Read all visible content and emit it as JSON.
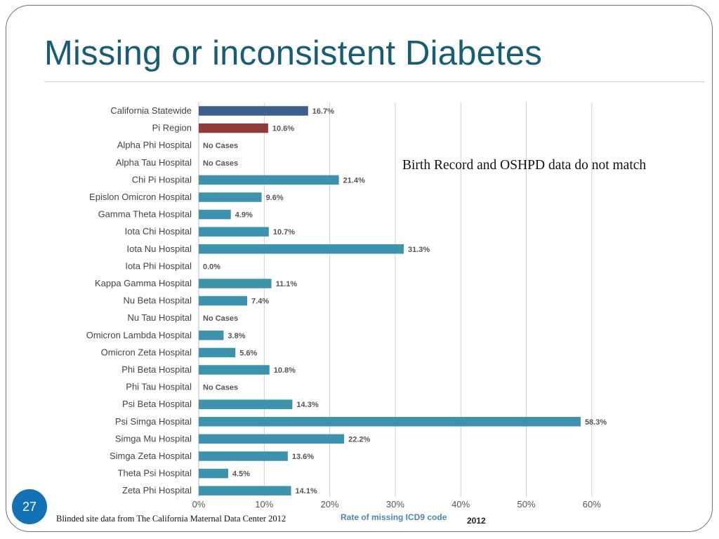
{
  "slide": {
    "title": "Missing or inconsistent Diabetes",
    "number": "27",
    "source": "Blinded site data from The California Maternal Data Center 2012",
    "callout": "Birth Record and OSHPD data do not match",
    "year": "2012"
  },
  "colors": {
    "statewide": "#3c5f8f",
    "region": "#913b3b",
    "hospital": "#3b93ad",
    "grid": "#cfcfcf",
    "title": "#155e73"
  },
  "chart_data": {
    "type": "bar",
    "orientation": "horizontal",
    "xlabel": "Rate of missing ICD9 code",
    "xlim": [
      0,
      60
    ],
    "xticks": [
      "0%",
      "10%",
      "20%",
      "30%",
      "40%",
      "50%",
      "60%"
    ],
    "grid": true,
    "categories": [
      "California Statewide",
      "Pi Region",
      "Alpha Phi Hospital",
      "Alpha Tau Hospital",
      "Chi Pi Hospital",
      "Epislon Omicron Hospital",
      "Gamma Theta Hospital",
      "Iota Chi Hospital",
      "Iota Nu Hospital",
      "Iota Phi Hospital",
      "Kappa Gamma Hospital",
      "Nu Beta Hospital",
      "Nu Tau Hospital",
      "Omicron Lambda Hospital",
      "Omicron Zeta Hospital",
      "Phi Beta Hospital",
      "Phi Tau Hospital",
      "Psi Beta Hospital",
      "Psi Simga Hospital",
      "Simga Mu Hospital",
      "Simga Zeta Hospital",
      "Theta Psi Hospital",
      "Zeta Phi Hospital"
    ],
    "values": [
      16.7,
      10.6,
      null,
      null,
      21.4,
      9.6,
      4.9,
      10.7,
      31.3,
      0.0,
      11.1,
      7.4,
      null,
      3.8,
      5.6,
      10.8,
      null,
      14.3,
      58.3,
      22.2,
      13.6,
      4.5,
      14.1
    ],
    "labels": [
      "16.7%",
      "10.6%",
      "No Cases",
      "No Cases",
      "21.4%",
      "9.6%",
      "4.9%",
      "10.7%",
      "31.3%",
      "0.0%",
      "11.1%",
      "7.4%",
      "No Cases",
      "3.8%",
      "5.6%",
      "10.8%",
      "No Cases",
      "14.3%",
      "58.3%",
      "22.2%",
      "13.6%",
      "4.5%",
      "14.1%"
    ],
    "bar_colors": [
      "statewide",
      "region",
      "hospital",
      "hospital",
      "hospital",
      "hospital",
      "hospital",
      "hospital",
      "hospital",
      "hospital",
      "hospital",
      "hospital",
      "hospital",
      "hospital",
      "hospital",
      "hospital",
      "hospital",
      "hospital",
      "hospital",
      "hospital",
      "hospital",
      "hospital",
      "hospital"
    ]
  }
}
